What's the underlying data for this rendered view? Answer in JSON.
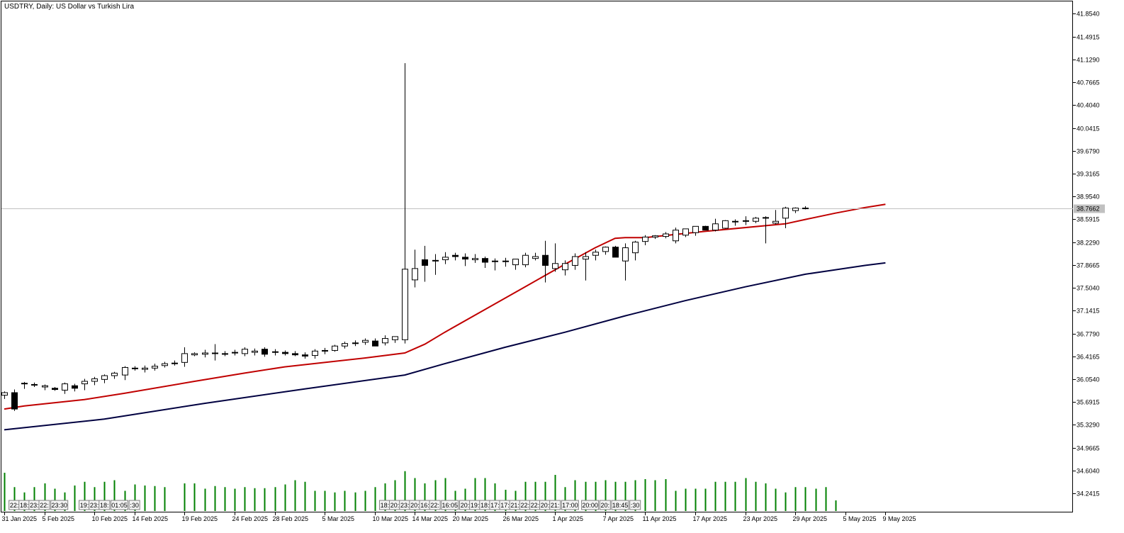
{
  "header": {
    "title": "USDTRY, Daily:  US Dollar vs Turkish Lira"
  },
  "chart_data": {
    "type": "candlestick",
    "symbol": "USDTRY",
    "timeframe": "Daily",
    "ylim": [
      33.95,
      42.05
    ],
    "price_ticks": [
      "41.8540",
      "41.4915",
      "41.1290",
      "40.7665",
      "40.4040",
      "40.0415",
      "39.6790",
      "39.3165",
      "38.9540",
      "38.5915",
      "38.2290",
      "37.8665",
      "37.5040",
      "37.1415",
      "36.7790",
      "36.4165",
      "36.0540",
      "35.6915",
      "35.3290",
      "34.9665",
      "34.6040",
      "34.2415"
    ],
    "current_price": 38.7662,
    "current_price_label": "38.7662",
    "x_labels": [
      "31 Jan 2025",
      "5 Feb 2025",
      "10 Feb 2025",
      "14 Feb 2025",
      "19 Feb 2025",
      "24 Feb 2025",
      "28 Feb 2025",
      "5 Mar 2025",
      "10 Mar 2025",
      "14 Mar 2025",
      "20 Mar 2025",
      "26 Mar 2025",
      "1 Apr 2025",
      "7 Apr 2025",
      "11 Apr 2025",
      "17 Apr 2025",
      "23 Apr 2025",
      "29 Apr 2025",
      "5 May 2025",
      "9 May 2025"
    ],
    "x_label_index": [
      0,
      4,
      9,
      13,
      18,
      23,
      27,
      32,
      37,
      41,
      45,
      50,
      55,
      60,
      64,
      69,
      74,
      79,
      84,
      88
    ],
    "candles": [
      [
        35.8,
        35.86,
        35.74,
        35.84
      ],
      [
        35.84,
        35.89,
        35.55,
        35.58
      ],
      [
        35.98,
        36.01,
        35.9,
        35.99
      ],
      [
        35.96,
        36.0,
        35.93,
        35.97
      ],
      [
        35.93,
        35.97,
        35.88,
        35.95
      ],
      [
        35.91,
        35.93,
        35.87,
        35.89
      ],
      [
        35.88,
        36.0,
        35.82,
        35.98
      ],
      [
        35.95,
        35.98,
        35.86,
        35.91
      ],
      [
        35.98,
        36.06,
        35.88,
        36.02
      ],
      [
        36.02,
        36.09,
        35.96,
        36.06
      ],
      [
        36.05,
        36.13,
        35.99,
        36.11
      ],
      [
        36.11,
        36.17,
        36.06,
        36.15
      ],
      [
        36.12,
        36.26,
        36.04,
        36.24
      ],
      [
        36.22,
        36.26,
        36.19,
        36.23
      ],
      [
        36.21,
        36.27,
        36.16,
        36.23
      ],
      [
        36.23,
        36.3,
        36.19,
        36.26
      ],
      [
        36.27,
        36.33,
        36.24,
        36.3
      ],
      [
        36.3,
        36.35,
        36.27,
        36.31
      ],
      [
        36.32,
        36.56,
        36.25,
        36.46
      ],
      [
        36.44,
        36.48,
        36.42,
        36.46
      ],
      [
        36.45,
        36.52,
        36.4,
        36.47
      ],
      [
        36.46,
        36.61,
        36.35,
        36.47
      ],
      [
        36.46,
        36.5,
        36.42,
        36.46
      ],
      [
        36.47,
        36.52,
        36.43,
        36.48
      ],
      [
        36.46,
        36.56,
        36.42,
        36.53
      ],
      [
        36.48,
        36.54,
        36.43,
        36.5
      ],
      [
        36.53,
        36.56,
        36.41,
        36.45
      ],
      [
        36.48,
        36.53,
        36.43,
        36.49
      ],
      [
        36.48,
        36.51,
        36.43,
        36.46
      ],
      [
        36.46,
        36.5,
        36.42,
        36.44
      ],
      [
        36.44,
        36.48,
        36.38,
        36.42
      ],
      [
        36.43,
        36.53,
        36.38,
        36.5
      ],
      [
        36.5,
        36.55,
        36.45,
        36.51
      ],
      [
        36.51,
        36.6,
        36.49,
        36.58
      ],
      [
        36.58,
        36.65,
        36.54,
        36.62
      ],
      [
        36.62,
        36.67,
        36.58,
        36.63
      ],
      [
        36.64,
        36.7,
        36.6,
        36.67
      ],
      [
        36.66,
        36.7,
        36.58,
        36.58
      ],
      [
        36.63,
        36.75,
        36.59,
        36.7
      ],
      [
        36.68,
        36.73,
        36.63,
        36.73
      ],
      [
        36.68,
        41.07,
        36.62,
        37.8
      ],
      [
        37.63,
        38.11,
        37.51,
        37.81
      ],
      [
        37.95,
        38.17,
        37.6,
        37.86
      ],
      [
        37.93,
        38.04,
        37.71,
        37.94
      ],
      [
        37.95,
        38.07,
        37.88,
        37.99
      ],
      [
        38.02,
        38.06,
        37.94,
        38.0
      ],
      [
        37.99,
        38.05,
        37.85,
        37.96
      ],
      [
        37.95,
        38.04,
        37.9,
        37.97
      ],
      [
        37.97,
        38.0,
        37.82,
        37.91
      ],
      [
        37.93,
        37.97,
        37.78,
        37.93
      ],
      [
        37.93,
        37.98,
        37.84,
        37.92
      ],
      [
        37.87,
        37.96,
        37.79,
        37.96
      ],
      [
        37.87,
        38.06,
        37.83,
        38.02
      ],
      [
        37.97,
        38.06,
        37.94,
        38.0
      ],
      [
        38.02,
        38.25,
        37.59,
        37.86
      ],
      [
        37.81,
        38.21,
        37.76,
        37.89
      ],
      [
        37.79,
        37.94,
        37.7,
        37.89
      ],
      [
        37.86,
        38.05,
        37.79,
        38.0
      ],
      [
        37.96,
        38.07,
        37.62,
        38.0
      ],
      [
        38.02,
        38.11,
        37.94,
        38.07
      ],
      [
        38.08,
        38.16,
        38.03,
        38.15
      ],
      [
        38.15,
        38.17,
        37.99,
        37.99
      ],
      [
        37.93,
        38.21,
        37.62,
        38.14
      ],
      [
        38.06,
        38.25,
        37.94,
        38.23
      ],
      [
        38.24,
        38.34,
        38.18,
        38.31
      ],
      [
        38.31,
        38.34,
        38.28,
        38.33
      ],
      [
        38.32,
        38.39,
        38.29,
        38.36
      ],
      [
        38.25,
        38.46,
        38.21,
        38.42
      ],
      [
        38.34,
        38.44,
        38.31,
        38.44
      ],
      [
        38.38,
        38.48,
        38.33,
        38.48
      ],
      [
        38.48,
        38.49,
        38.42,
        38.42
      ],
      [
        38.42,
        38.6,
        38.4,
        38.52
      ],
      [
        38.45,
        38.58,
        38.44,
        38.57
      ],
      [
        38.55,
        38.59,
        38.49,
        38.56
      ],
      [
        38.56,
        38.64,
        38.5,
        38.57
      ],
      [
        38.56,
        38.63,
        38.53,
        38.61
      ],
      [
        38.62,
        38.64,
        38.21,
        38.62
      ],
      [
        38.53,
        38.74,
        38.51,
        38.56
      ],
      [
        38.61,
        38.79,
        38.45,
        38.77
      ],
      [
        38.73,
        38.78,
        38.69,
        38.77
      ],
      [
        38.77,
        38.8,
        38.75,
        38.77
      ]
    ],
    "ma_fast": [
      [
        0,
        35.58
      ],
      [
        2,
        35.63
      ],
      [
        8,
        35.73
      ],
      [
        12,
        35.83
      ],
      [
        19,
        36.02
      ],
      [
        24,
        36.15
      ],
      [
        28,
        36.25
      ],
      [
        36,
        36.39
      ],
      [
        40,
        36.47
      ],
      [
        42,
        36.61
      ],
      [
        44,
        36.8
      ],
      [
        48,
        37.16
      ],
      [
        52,
        37.52
      ],
      [
        56,
        37.88
      ],
      [
        59,
        38.14
      ],
      [
        61,
        38.29
      ],
      [
        62,
        38.3
      ],
      [
        64,
        38.3
      ],
      [
        70,
        38.4
      ],
      [
        78,
        38.52
      ],
      [
        80,
        38.59
      ],
      [
        83,
        38.69
      ],
      [
        86,
        38.78
      ],
      [
        88,
        38.83
      ]
    ],
    "ma_slow": [
      [
        0,
        35.25
      ],
      [
        10,
        35.42
      ],
      [
        20,
        35.67
      ],
      [
        30,
        35.9
      ],
      [
        40,
        36.12
      ],
      [
        44,
        36.3
      ],
      [
        50,
        36.56
      ],
      [
        56,
        36.8
      ],
      [
        62,
        37.06
      ],
      [
        68,
        37.3
      ],
      [
        74,
        37.52
      ],
      [
        80,
        37.72
      ],
      [
        86,
        37.86
      ],
      [
        88,
        37.9
      ]
    ],
    "volume": [
      [
        0,
        0.72
      ],
      [
        1,
        0.45
      ],
      [
        2,
        0.35
      ],
      [
        3,
        0.45
      ],
      [
        4,
        0.52
      ],
      [
        5,
        0.42
      ],
      [
        6,
        0.35
      ],
      [
        7,
        0.48
      ],
      [
        8,
        0.55
      ],
      [
        9,
        0.45
      ],
      [
        10,
        0.55
      ],
      [
        11,
        0.58
      ],
      [
        12,
        0.38
      ],
      [
        13,
        0.5
      ],
      [
        14,
        0.48
      ],
      [
        15,
        0.47
      ],
      [
        16,
        0.45
      ],
      [
        18,
        0.52
      ],
      [
        19,
        0.52
      ],
      [
        20,
        0.42
      ],
      [
        21,
        0.47
      ],
      [
        22,
        0.45
      ],
      [
        23,
        0.42
      ],
      [
        24,
        0.45
      ],
      [
        25,
        0.43
      ],
      [
        26,
        0.43
      ],
      [
        27,
        0.45
      ],
      [
        28,
        0.5
      ],
      [
        29,
        0.58
      ],
      [
        30,
        0.55
      ],
      [
        31,
        0.38
      ],
      [
        32,
        0.38
      ],
      [
        33,
        0.35
      ],
      [
        34,
        0.38
      ],
      [
        35,
        0.35
      ],
      [
        36,
        0.38
      ],
      [
        37,
        0.45
      ],
      [
        38,
        0.52
      ],
      [
        39,
        0.58
      ],
      [
        40,
        0.75
      ],
      [
        41,
        0.62
      ],
      [
        42,
        0.52
      ],
      [
        43,
        0.58
      ],
      [
        44,
        0.62
      ],
      [
        45,
        0.38
      ],
      [
        46,
        0.42
      ],
      [
        47,
        0.62
      ],
      [
        48,
        0.62
      ],
      [
        49,
        0.52
      ],
      [
        50,
        0.4
      ],
      [
        51,
        0.38
      ],
      [
        52,
        0.55
      ],
      [
        53,
        0.55
      ],
      [
        54,
        0.55
      ],
      [
        55,
        0.68
      ],
      [
        56,
        0.45
      ],
      [
        57,
        0.58
      ],
      [
        58,
        0.55
      ],
      [
        59,
        0.55
      ],
      [
        60,
        0.58
      ],
      [
        61,
        0.55
      ],
      [
        62,
        0.55
      ],
      [
        63,
        0.58
      ],
      [
        64,
        0.6
      ],
      [
        65,
        0.58
      ],
      [
        66,
        0.6
      ],
      [
        67,
        0.38
      ],
      [
        68,
        0.42
      ],
      [
        69,
        0.42
      ],
      [
        70,
        0.42
      ],
      [
        71,
        0.55
      ],
      [
        72,
        0.55
      ],
      [
        73,
        0.55
      ],
      [
        74,
        0.62
      ],
      [
        75,
        0.55
      ],
      [
        76,
        0.52
      ],
      [
        77,
        0.42
      ],
      [
        78,
        0.35
      ],
      [
        79,
        0.45
      ],
      [
        80,
        0.45
      ],
      [
        81,
        0.42
      ],
      [
        82,
        0.45
      ],
      [
        83,
        0.2
      ]
    ],
    "time_tags": [
      {
        "label": "22:",
        "index": 1
      },
      {
        "label": "18:",
        "index": 2,
        "highlight": true
      },
      {
        "label": "23:",
        "index": 3
      },
      {
        "label": "22:",
        "index": 4
      },
      {
        "label": "23:30",
        "index": 5.5
      },
      {
        "label": "19:",
        "index": 8
      },
      {
        "label": "23:",
        "index": 9
      },
      {
        "label": "18:",
        "index": 10
      },
      {
        "label": "01:05",
        "index": 11.5
      },
      {
        "label": ":30",
        "index": 13
      },
      {
        "label": "18:",
        "index": 38
      },
      {
        "label": "20:",
        "index": 39
      },
      {
        "label": "23:",
        "index": 40
      },
      {
        "label": "20:",
        "index": 41
      },
      {
        "label": "16:",
        "index": 42
      },
      {
        "label": "22:",
        "index": 43
      },
      {
        "label": "16:05",
        "index": 44.5
      },
      {
        "label": "20:",
        "index": 46
      },
      {
        "label": "19:",
        "index": 47
      },
      {
        "label": "18:",
        "index": 48
      },
      {
        "label": "17:",
        "index": 49,
        "highlight": true
      },
      {
        "label": "17:",
        "index": 50
      },
      {
        "label": "21:",
        "index": 51
      },
      {
        "label": "22:",
        "index": 52
      },
      {
        "label": "22:",
        "index": 53
      },
      {
        "label": "20:",
        "index": 54
      },
      {
        "label": "21:",
        "index": 55
      },
      {
        "label": "17:00",
        "index": 56.5
      },
      {
        "label": "20:00",
        "index": 58.5
      },
      {
        "label": "20:",
        "index": 60
      },
      {
        "label": "18:45",
        "index": 61.5
      },
      {
        "label": ":30",
        "index": 63
      }
    ],
    "colors": {
      "background": "#ffffff",
      "ma_fast": "#c00000",
      "ma_slow": "#000040",
      "volume": "#008000",
      "candle_body_up": "#ffffff",
      "candle_body_down": "#000000",
      "candle_outline": "#000000",
      "price_line": "#c0c0c0",
      "price_tag": "#c0c0c0"
    }
  }
}
